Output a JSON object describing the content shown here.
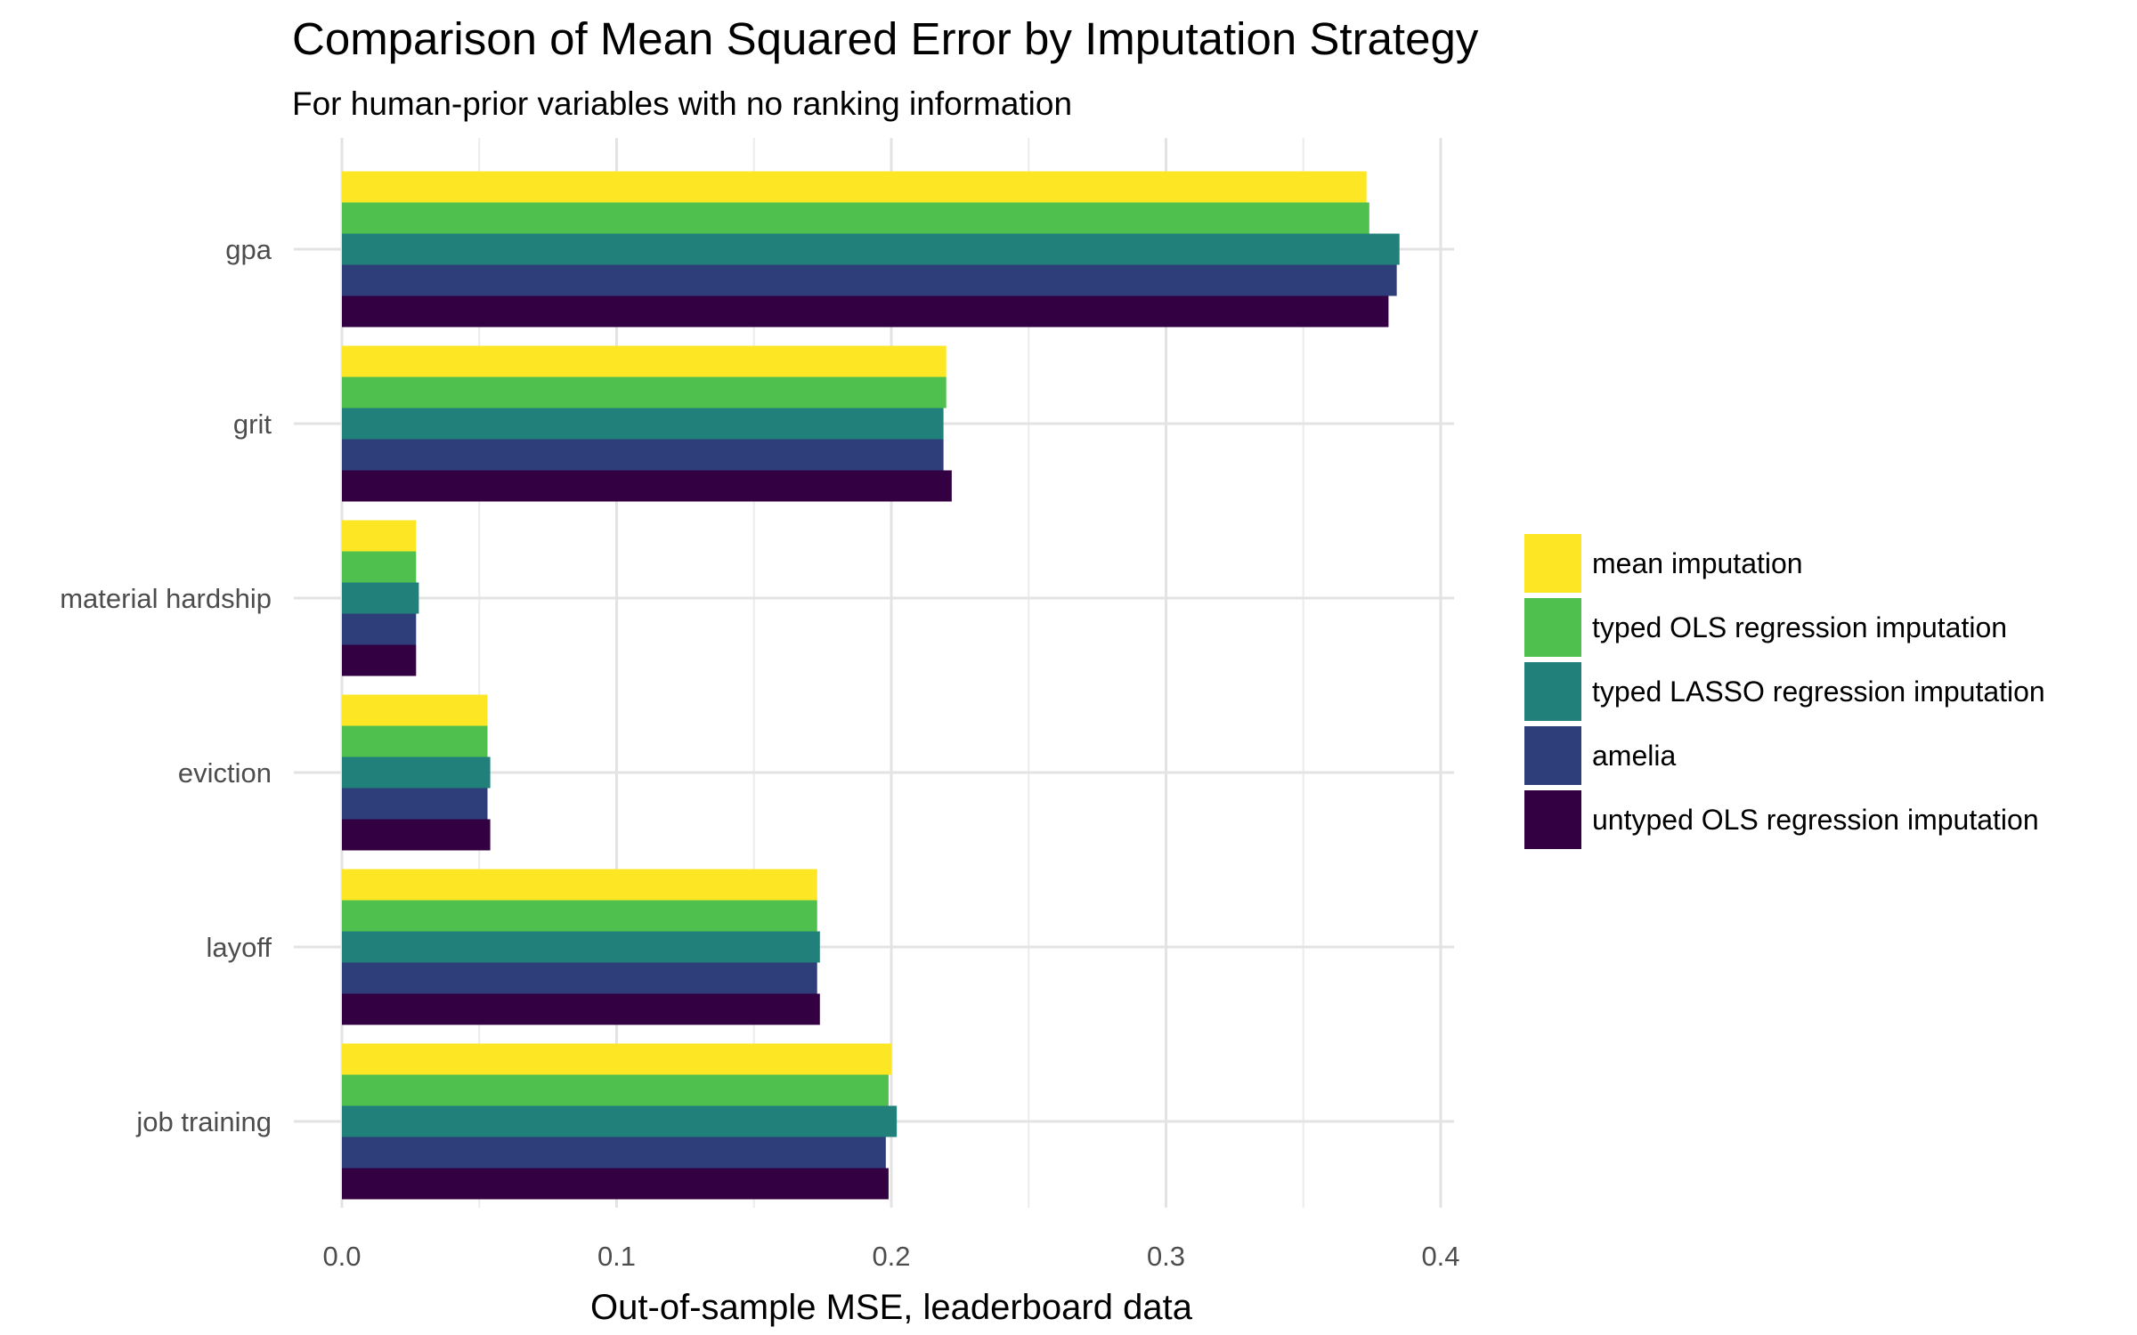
{
  "chart_data": {
    "type": "bar",
    "orientation": "horizontal",
    "title": "Comparison of Mean Squared Error by Imputation Strategy",
    "subtitle": "For human-prior variables with no ranking information",
    "xlabel": "Out-of-sample MSE, leaderboard data",
    "ylabel": "",
    "xlim": [
      0,
      0.4
    ],
    "x_ticks": [
      "0.0",
      "0.1",
      "0.2",
      "0.3",
      "0.4"
    ],
    "grid": true,
    "legend_position": "right",
    "categories": [
      "gpa",
      "grit",
      "material hardship",
      "eviction",
      "layoff",
      "job training"
    ],
    "series": [
      {
        "name": "mean imputation",
        "color": "#FDE725",
        "values": [
          0.373,
          0.22,
          0.027,
          0.053,
          0.173,
          0.2
        ]
      },
      {
        "name": "typed OLS regression imputation",
        "color": "#4FC04E",
        "values": [
          0.374,
          0.22,
          0.027,
          0.053,
          0.173,
          0.199
        ]
      },
      {
        "name": "typed LASSO regression imputation",
        "color": "#21807A",
        "values": [
          0.385,
          0.219,
          0.028,
          0.054,
          0.174,
          0.202
        ]
      },
      {
        "name": "amelia",
        "color": "#2E3E7A",
        "values": [
          0.384,
          0.219,
          0.027,
          0.053,
          0.173,
          0.198
        ]
      },
      {
        "name": "untyped OLS regression imputation",
        "color": "#330042",
        "values": [
          0.381,
          0.222,
          0.027,
          0.054,
          0.174,
          0.199
        ]
      }
    ]
  }
}
